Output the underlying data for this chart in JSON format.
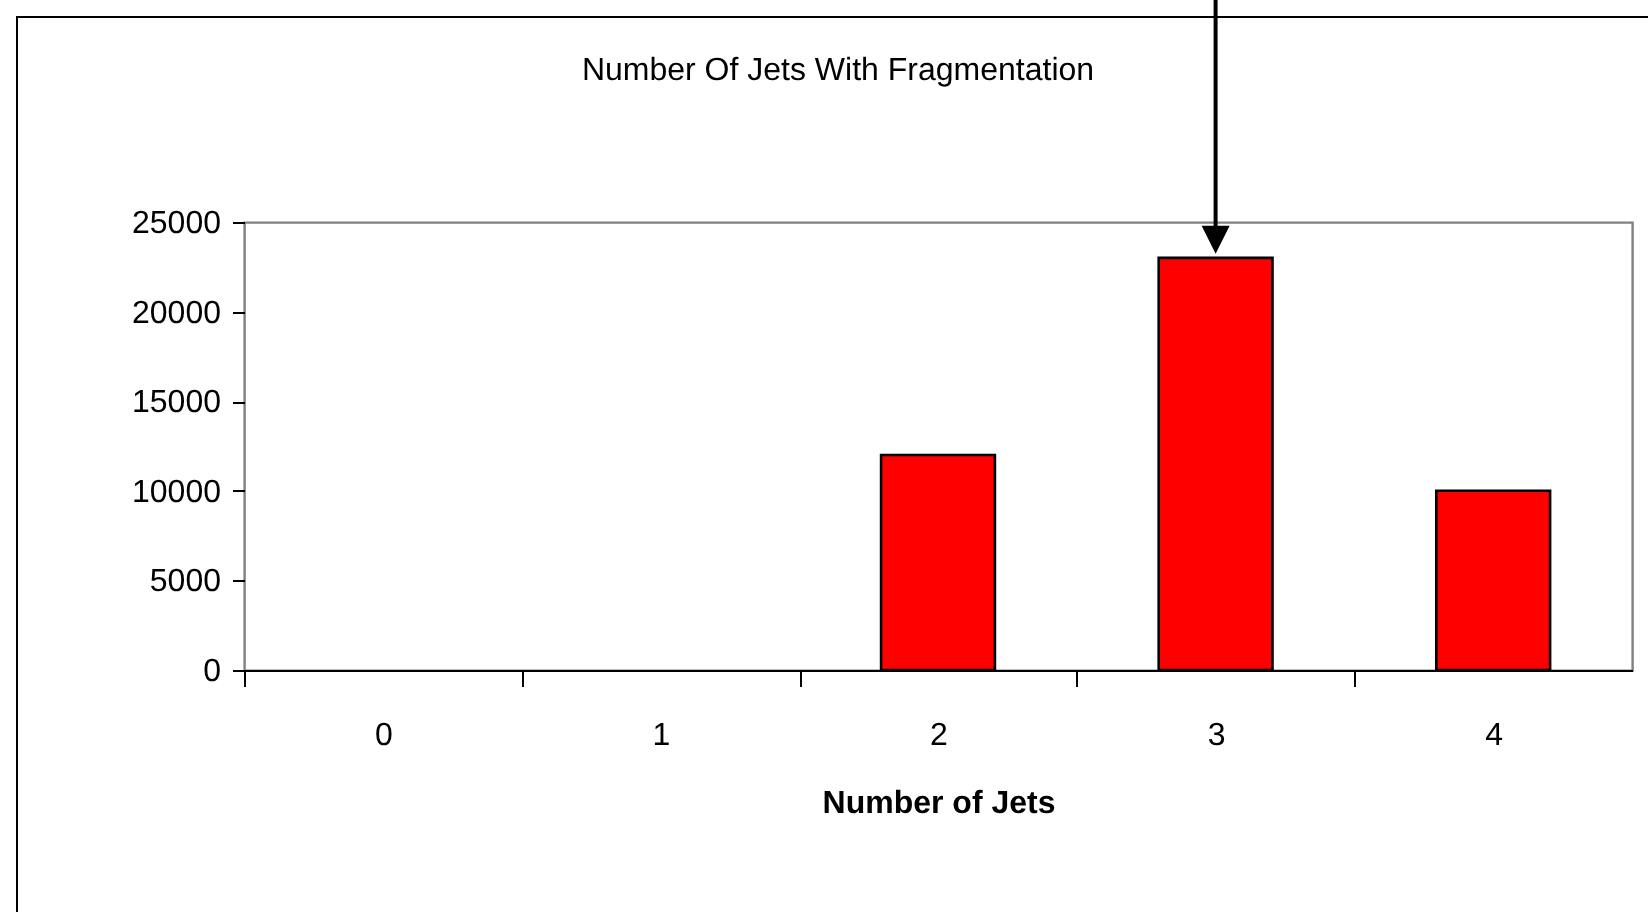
{
  "chart_data": {
    "type": "bar",
    "title": "Number Of Jets With Fragmentation",
    "xlabel": "Number of Jets",
    "categories": [
      "0",
      "1",
      "2",
      "3",
      "4"
    ],
    "values": [
      0,
      0,
      12000,
      23000,
      10000
    ],
    "color": "#ff0000",
    "ylim": [
      0,
      25000
    ],
    "yticks": [
      0,
      5000,
      10000,
      15000,
      20000,
      25000
    ],
    "grid": false
  }
}
